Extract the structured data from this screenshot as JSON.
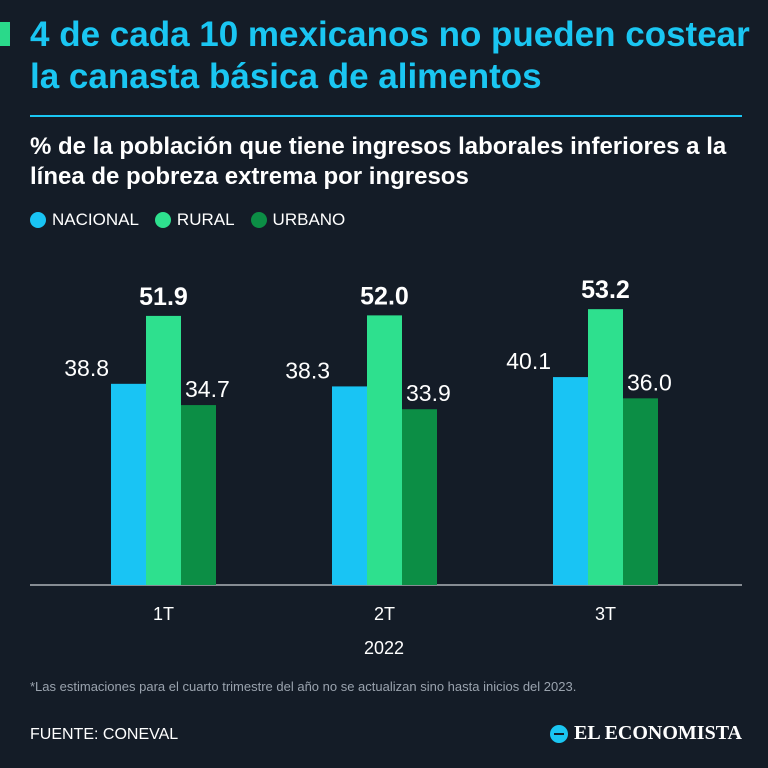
{
  "header": {
    "title": "4 de cada 10 mexicanos no pueden costear la canasta básica de alimentos",
    "subtitle": "% de la población que tiene ingresos laborales inferiores a la línea de pobreza extrema por ingresos"
  },
  "footer": {
    "footnote": "*Las estimaciones para el cuarto trimestre del año no se actualizan sino hasta inicios del 2023.",
    "source": "FUENTE: CONEVAL",
    "brand": "EL ECONOMISTA"
  },
  "colors": {
    "nacional": "#19c4f4",
    "rural": "#2ee08e",
    "urbano": "#0c8e45",
    "background": "#141c27",
    "title": "#1ac6f2"
  },
  "chart_data": {
    "type": "bar",
    "title": "% de la población que tiene ingresos laborales inferiores a la línea de pobreza extrema por ingresos",
    "categories": [
      "1T",
      "2T",
      "3T"
    ],
    "xlabel": "2022",
    "ylabel": "",
    "ylim": [
      0,
      60
    ],
    "grid": false,
    "legend_position": "top-left",
    "series": [
      {
        "name": "NACIONAL",
        "values": [
          38.8,
          38.3,
          40.1
        ],
        "labels": [
          "38.8",
          "38.3",
          "40.1"
        ]
      },
      {
        "name": "RURAL",
        "values": [
          51.9,
          52.0,
          53.2
        ],
        "labels": [
          "51.9",
          "52.0",
          "53.2"
        ]
      },
      {
        "name": "URBANO",
        "values": [
          34.7,
          33.9,
          36.0
        ],
        "labels": [
          "34.7",
          "33.9",
          "36.0"
        ]
      }
    ]
  }
}
